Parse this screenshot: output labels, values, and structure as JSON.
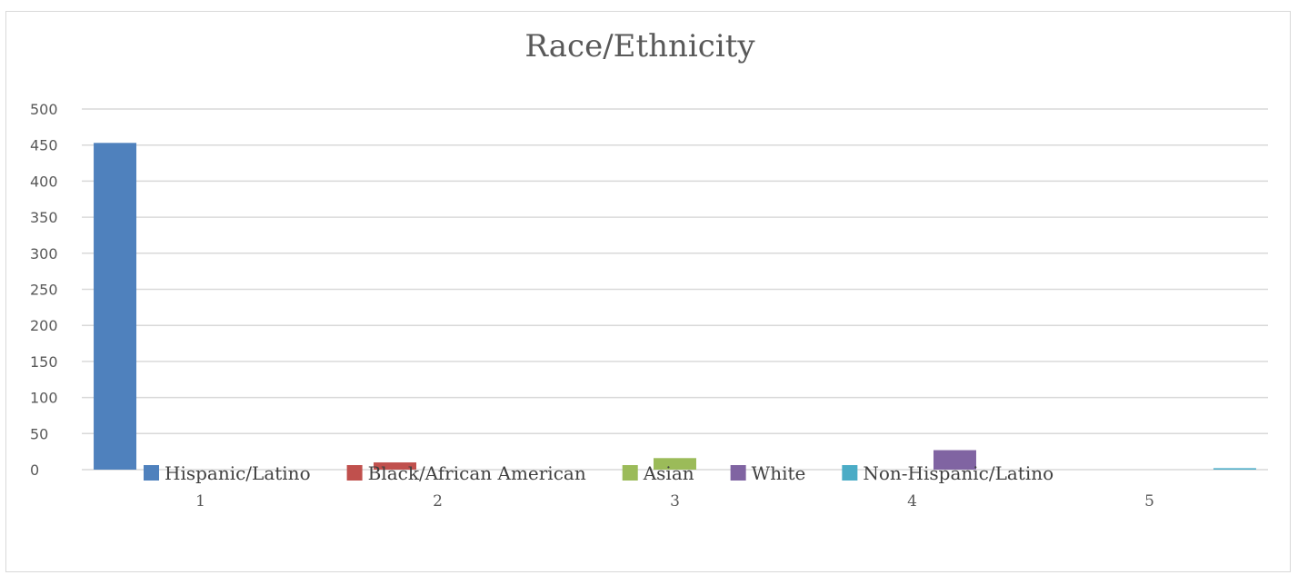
{
  "chart_data": {
    "type": "bar",
    "title": "Race/Ethnicity",
    "categories": [
      "1",
      "2",
      "3",
      "4",
      "5"
    ],
    "series": [
      {
        "name": "Hispanic/Latino",
        "color": "#4f81bd",
        "values": [
          453,
          0,
          0,
          0,
          0
        ]
      },
      {
        "name": "Black/African American",
        "color": "#c0504d",
        "values": [
          0,
          10,
          0,
          0,
          0
        ]
      },
      {
        "name": "Asian",
        "color": "#9bbb59",
        "values": [
          0,
          0,
          16,
          0,
          0
        ]
      },
      {
        "name": "White",
        "color": "#8064a2",
        "values": [
          0,
          0,
          0,
          27,
          0
        ]
      },
      {
        "name": "Non-Hispanic/Latino",
        "color": "#4bacc6",
        "values": [
          0,
          0,
          0,
          0,
          2
        ]
      }
    ],
    "ylim": [
      0,
      500
    ],
    "yticks": [
      0,
      50,
      100,
      150,
      200,
      250,
      300,
      350,
      400,
      450,
      500
    ],
    "grid": true,
    "legend_position": "bottom"
  }
}
